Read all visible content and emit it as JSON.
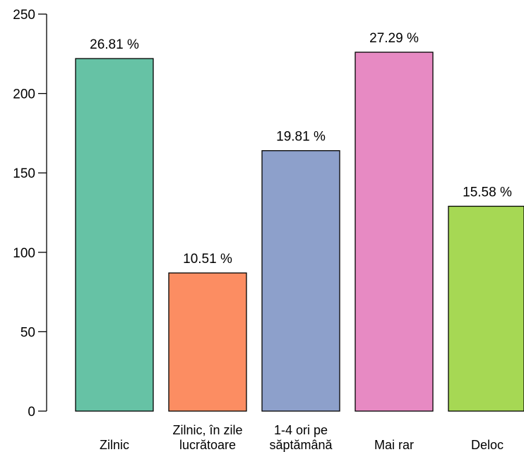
{
  "chart_data": {
    "type": "bar",
    "categories": [
      [
        "Zilnic"
      ],
      [
        "Zilnic, în zile",
        "lucrătoare"
      ],
      [
        "1-4 ori pe",
        "săptămână"
      ],
      [
        "Mai rar"
      ],
      [
        "Deloc"
      ]
    ],
    "values": [
      222,
      87,
      164,
      226,
      129
    ],
    "data_labels": [
      "26.81 %",
      "10.51 %",
      "19.81 %",
      "27.29 %",
      "15.58 %"
    ],
    "colors": [
      "#66c2a5",
      "#fc8d62",
      "#8da0cb",
      "#e78ac3",
      "#a6d854"
    ],
    "ylim": [
      0,
      250
    ],
    "yticks": [
      0,
      50,
      100,
      150,
      200,
      250
    ],
    "grid": false,
    "legend": "none"
  }
}
